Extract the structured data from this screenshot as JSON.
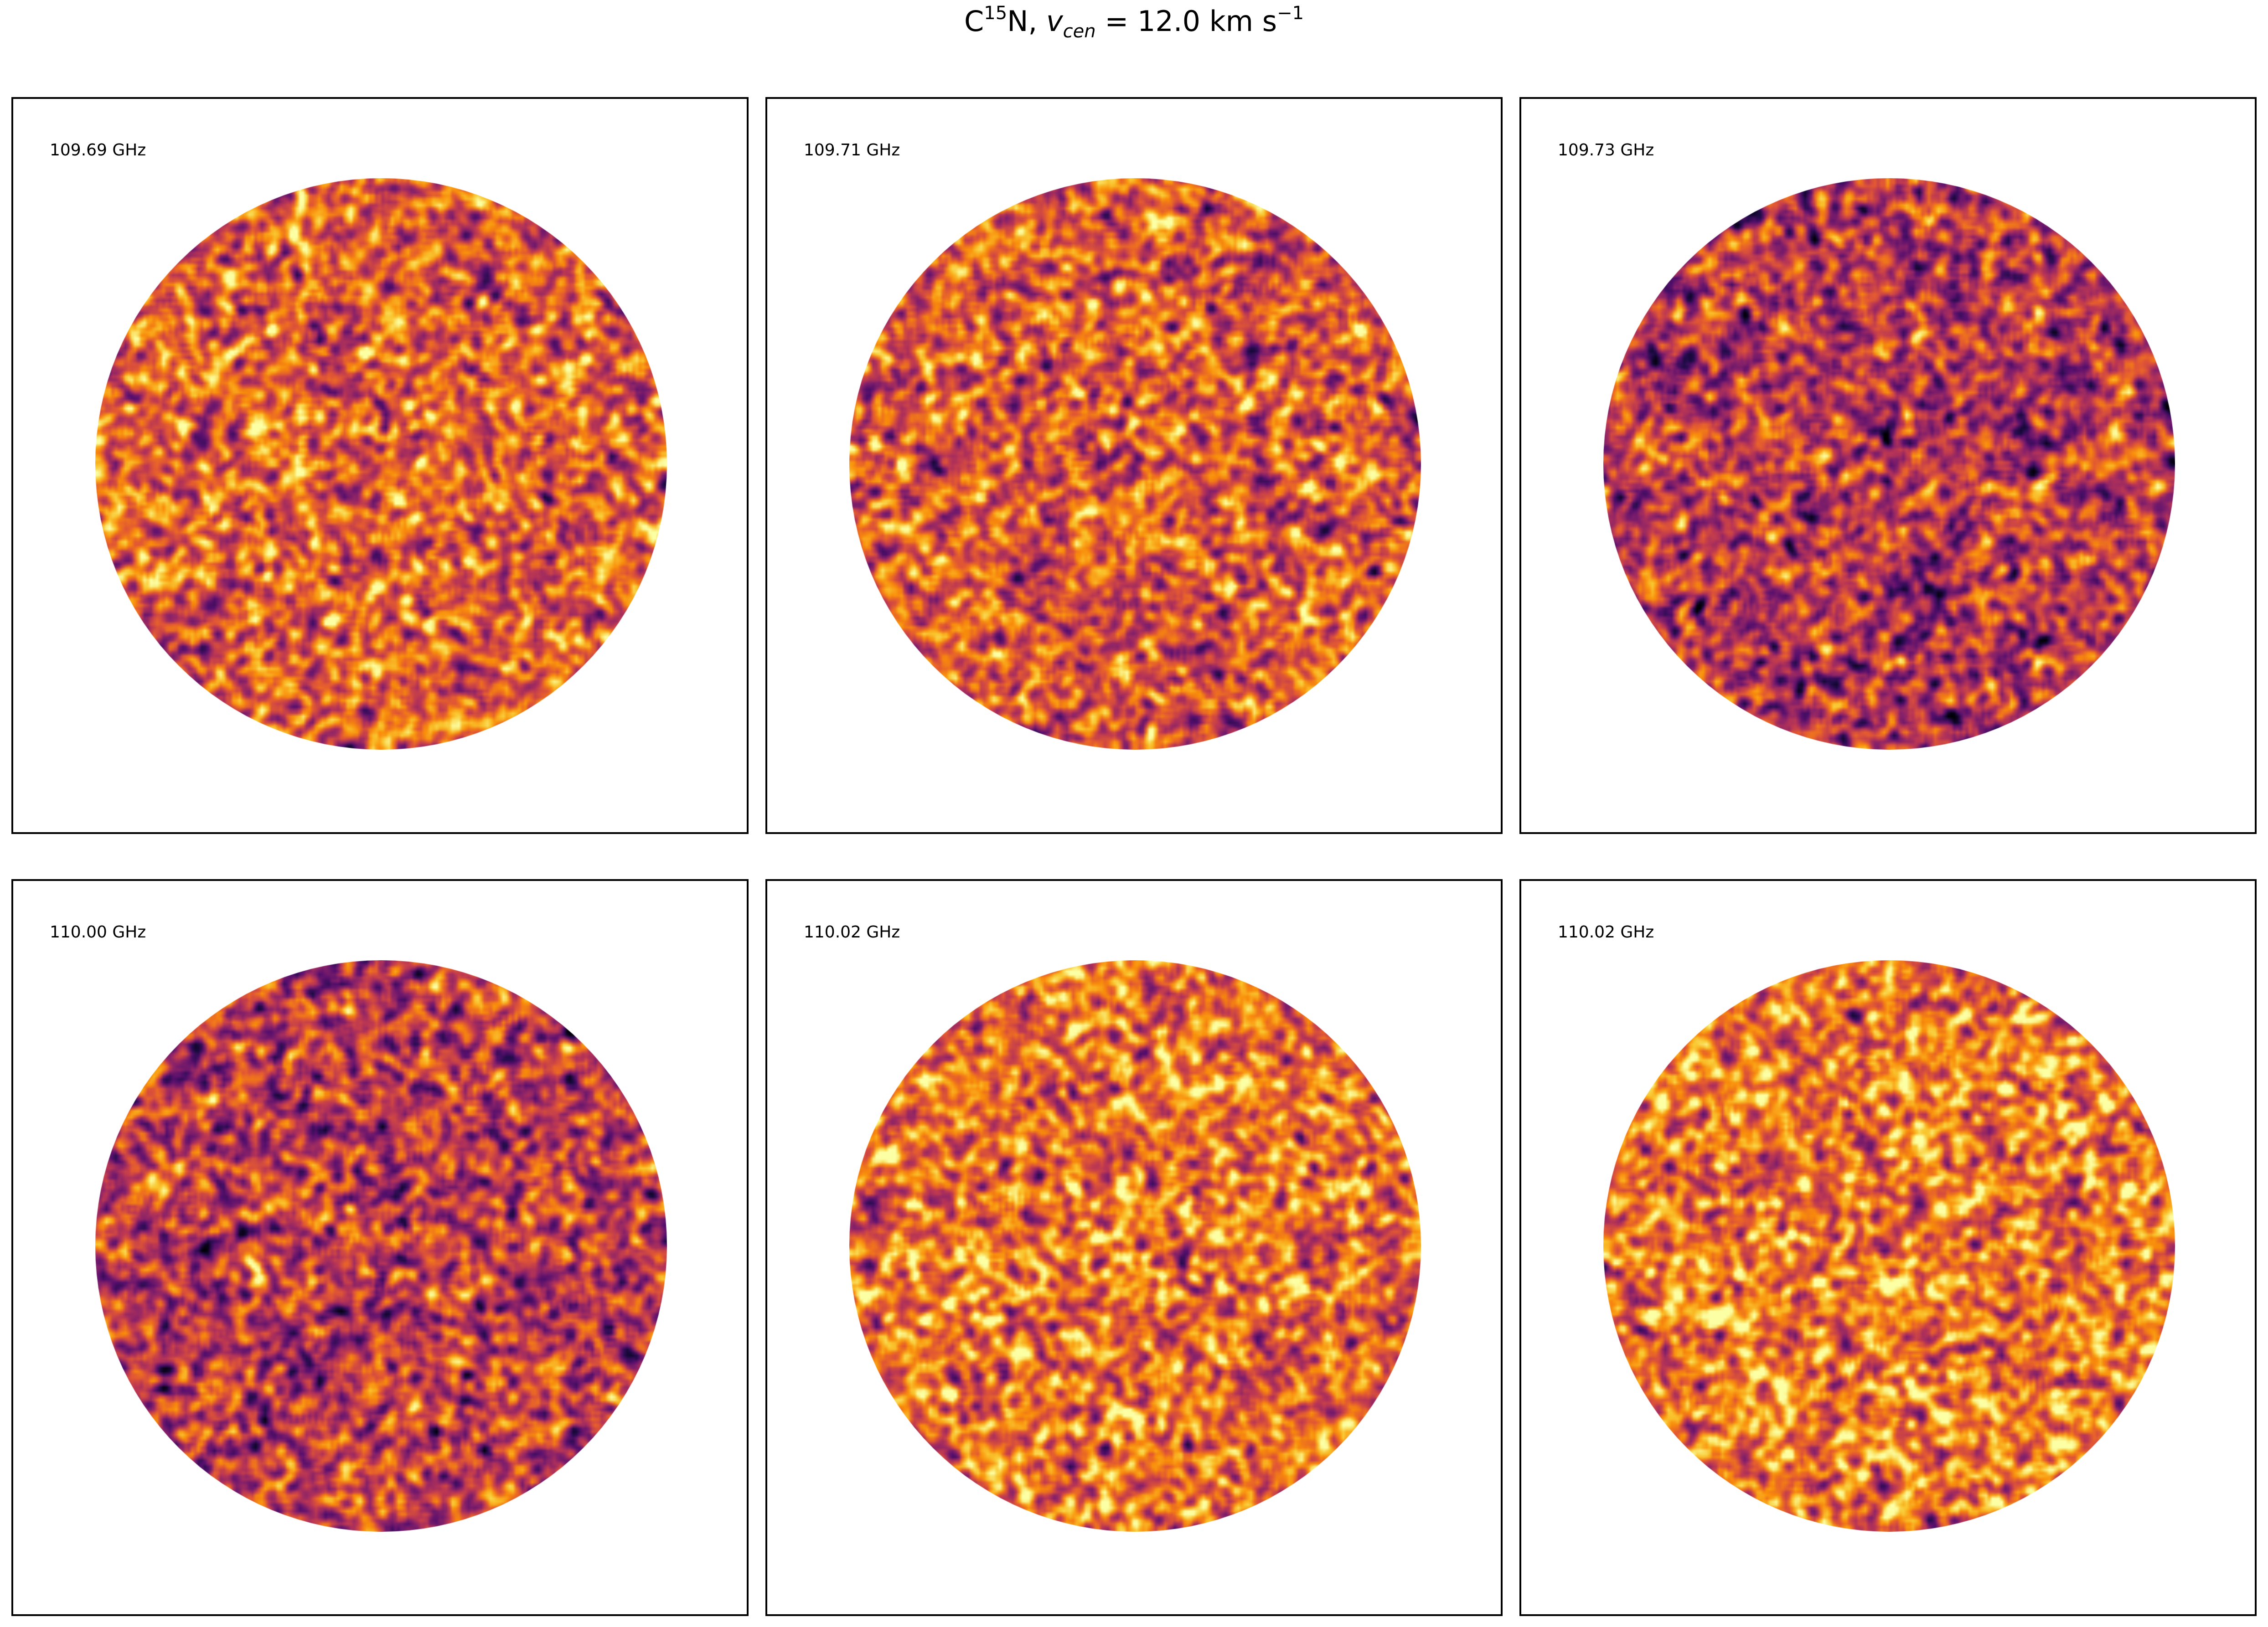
{
  "figure": {
    "title_species": "C",
    "title_isotope": "15",
    "title_species_tail": "N, ",
    "title_var": "v",
    "title_var_sub": "cen",
    "title_value": " =  12.0 km s",
    "title_exponent": "−1"
  },
  "colormap": "inferno",
  "panels": [
    {
      "frequency_label": "109.69 GHz",
      "mean_level": 0.64
    },
    {
      "frequency_label": "109.71 GHz",
      "mean_level": 0.62
    },
    {
      "frequency_label": "109.73 GHz",
      "mean_level": 0.5
    },
    {
      "frequency_label": "110.00 GHz",
      "mean_level": 0.52
    },
    {
      "frequency_label": "110.02 GHz",
      "mean_level": 0.68
    },
    {
      "frequency_label": "110.02 GHz",
      "mean_level": 0.7
    }
  ]
}
